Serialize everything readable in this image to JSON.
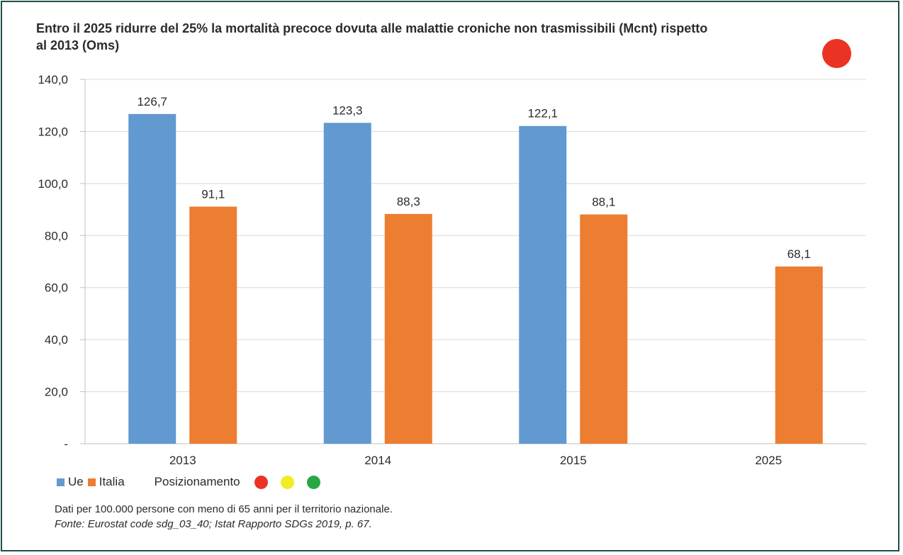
{
  "title": "Entro il 2025 ridurre del 25% la mortalità precoce dovuta alle malattie croniche non trasmissibili (Mcnt) rispetto al 2013 (Oms)",
  "status_color": "#ea3323",
  "chart_data": {
    "type": "bar",
    "categories": [
      "2013",
      "2014",
      "2015",
      "2025"
    ],
    "series": [
      {
        "name": "Ue",
        "color": "#6199d0",
        "values": [
          126.7,
          123.3,
          122.1,
          null
        ],
        "labels": [
          "126,7",
          "123,3",
          "122,1",
          ""
        ]
      },
      {
        "name": "Italia",
        "color": "#ed7d31",
        "values": [
          91.1,
          88.3,
          88.1,
          68.1
        ],
        "labels": [
          "91,1",
          "88,3",
          "88,1",
          "68,1"
        ]
      }
    ],
    "ylim": [
      0,
      140
    ],
    "yticks": [
      0,
      20,
      40,
      60,
      80,
      100,
      120,
      140
    ],
    "ytick_labels": [
      "-",
      "20,0",
      "40,0",
      "60,0",
      "80,0",
      "100,0",
      "120,0",
      "140,0"
    ],
    "grid": true,
    "legend_position": "bottom-left"
  },
  "legend": {
    "items": [
      {
        "label": "Ue",
        "color": "#6199d0"
      },
      {
        "label": "Italia",
        "color": "#ed7d31"
      }
    ],
    "positioning_label": "Posizionamento",
    "positioning_dots": [
      "#ea3323",
      "#f2ec27",
      "#27a844"
    ]
  },
  "notes": {
    "line1": "Dati per 100.000 persone con meno di 65 anni per il territorio nazionale.",
    "line2": "Fonte: Eurostat code sdg_03_40; Istat Rapporto SDGs 2019, p. 67."
  }
}
